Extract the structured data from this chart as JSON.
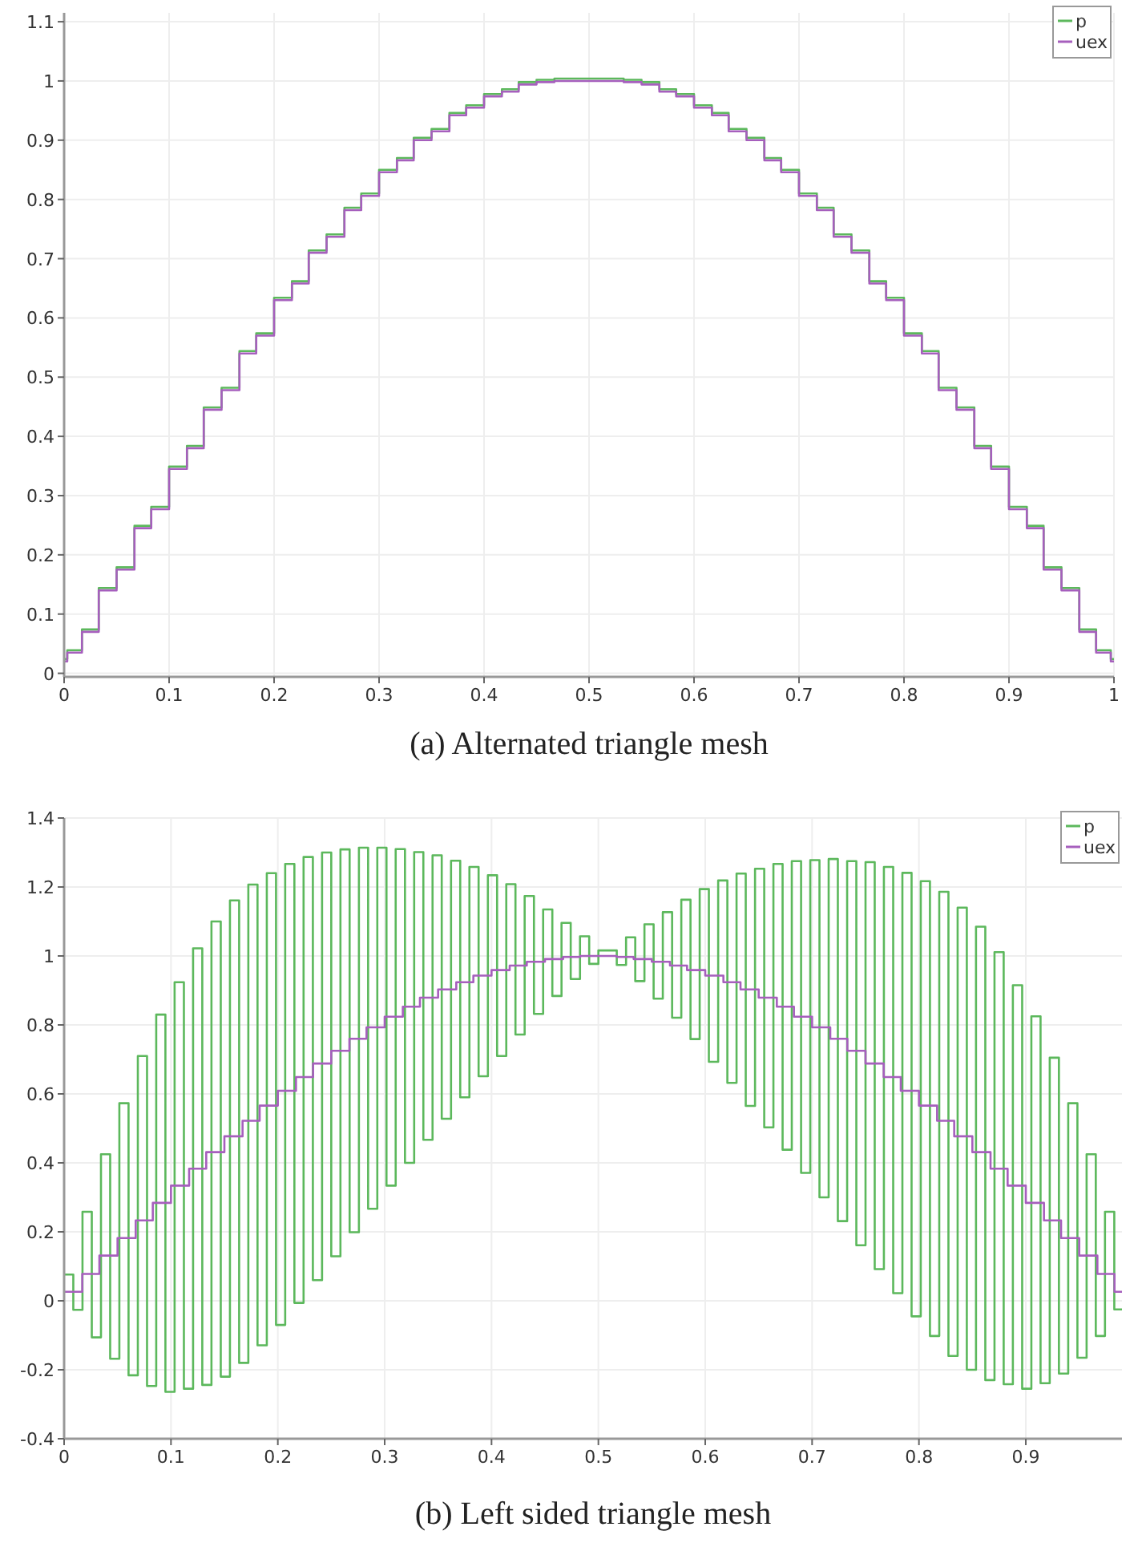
{
  "chart_data": [
    {
      "type": "step",
      "title": "(a) Alternated triangle mesh",
      "xlim": [
        0,
        1
      ],
      "ylim": [
        -0.006,
        1.115
      ],
      "xticks": [
        0,
        0.1,
        0.2,
        0.3,
        0.4,
        0.5,
        0.6,
        0.7,
        0.8,
        0.9,
        1
      ],
      "yticks": [
        0,
        0.1,
        0.2,
        0.3,
        0.4,
        0.5,
        0.6,
        0.7,
        0.8,
        0.9,
        1,
        1.1
      ],
      "grid": true,
      "legend": "top right",
      "x": [
        0,
        0.003,
        0.017,
        0.033,
        0.05,
        0.067,
        0.083,
        0.1,
        0.117,
        0.133,
        0.15,
        0.167,
        0.183,
        0.2,
        0.217,
        0.233,
        0.25,
        0.267,
        0.283,
        0.3,
        0.317,
        0.333,
        0.35,
        0.367,
        0.383,
        0.4,
        0.417,
        0.433,
        0.45,
        0.467,
        0.483,
        0.5,
        0.517,
        0.533,
        0.55,
        0.567,
        0.583,
        0.6,
        0.617,
        0.633,
        0.65,
        0.667,
        0.683,
        0.7,
        0.717,
        0.733,
        0.75,
        0.767,
        0.783,
        0.8,
        0.817,
        0.833,
        0.85,
        0.867,
        0.883,
        0.9,
        0.917,
        0.933,
        0.95,
        0.967,
        0.983,
        0.997,
        1
      ],
      "series": [
        {
          "name": "p",
          "color": "#5cb85c",
          "values": [
            0.024,
            0.039,
            0.074,
            0.144,
            0.179,
            0.249,
            0.281,
            0.349,
            0.384,
            0.449,
            0.482,
            0.544,
            0.574,
            0.634,
            0.662,
            0.714,
            0.741,
            0.786,
            0.81,
            0.85,
            0.87,
            0.904,
            0.919,
            0.946,
            0.959,
            0.978,
            0.986,
            0.998,
            1.002,
            1.004,
            1.004,
            1.004,
            1.004,
            1.002,
            0.998,
            0.986,
            0.978,
            0.959,
            0.946,
            0.919,
            0.904,
            0.87,
            0.85,
            0.81,
            0.786,
            0.741,
            0.714,
            0.662,
            0.634,
            0.574,
            0.544,
            0.482,
            0.449,
            0.384,
            0.349,
            0.281,
            0.249,
            0.179,
            0.144,
            0.074,
            0.039,
            0.024,
            0.024
          ]
        },
        {
          "name": "uex",
          "color": "#a65fbd",
          "values": [
            0.02,
            0.035,
            0.07,
            0.14,
            0.175,
            0.245,
            0.277,
            0.345,
            0.38,
            0.445,
            0.478,
            0.54,
            0.57,
            0.63,
            0.658,
            0.71,
            0.737,
            0.782,
            0.806,
            0.846,
            0.866,
            0.9,
            0.915,
            0.942,
            0.955,
            0.974,
            0.982,
            0.994,
            0.998,
            1.0,
            1.0,
            1.0,
            1.0,
            0.998,
            0.994,
            0.982,
            0.974,
            0.955,
            0.942,
            0.915,
            0.9,
            0.866,
            0.846,
            0.806,
            0.782,
            0.737,
            0.71,
            0.658,
            0.63,
            0.57,
            0.54,
            0.478,
            0.445,
            0.38,
            0.345,
            0.277,
            0.245,
            0.175,
            0.14,
            0.07,
            0.035,
            0.02,
            0.02
          ]
        }
      ]
    },
    {
      "type": "step",
      "title": "(b) Left sided triangle mesh",
      "xlim": [
        0,
        0.99
      ],
      "ylim": [
        -0.4,
        1.4
      ],
      "xticks": [
        0,
        0.1,
        0.2,
        0.3,
        0.4,
        0.5,
        0.6,
        0.7,
        0.8,
        0.9
      ],
      "yticks": [
        -0.4,
        -0.2,
        0,
        0.2,
        0.4,
        0.6,
        0.8,
        1,
        1.2,
        1.4
      ],
      "grid": true,
      "legend": "top right",
      "series": [
        {
          "name": "p",
          "color": "#5cb85c",
          "x": [
            0,
            0.0086,
            0.0172,
            0.0259,
            0.0345,
            0.0431,
            0.0517,
            0.0603,
            0.069,
            0.0776,
            0.0862,
            0.0948,
            0.1034,
            0.1121,
            0.1207,
            0.1293,
            0.1379,
            0.1466,
            0.1552,
            0.1638,
            0.1724,
            0.181,
            0.1897,
            0.1983,
            0.2069,
            0.2155,
            0.2241,
            0.2328,
            0.2414,
            0.25,
            0.2586,
            0.2672,
            0.2759,
            0.2845,
            0.2931,
            0.3017,
            0.3103,
            0.319,
            0.3276,
            0.3362,
            0.3448,
            0.3534,
            0.3621,
            0.3707,
            0.3793,
            0.3879,
            0.3966,
            0.4052,
            0.4138,
            0.4224,
            0.431,
            0.4397,
            0.4483,
            0.4569,
            0.4655,
            0.4741,
            0.4828,
            0.4914,
            0.5,
            0.5172,
            0.5259,
            0.5345,
            0.5431,
            0.5517,
            0.5603,
            0.569,
            0.5776,
            0.5862,
            0.5948,
            0.6034,
            0.6121,
            0.6207,
            0.6293,
            0.6379,
            0.6466,
            0.6552,
            0.6638,
            0.6724,
            0.681,
            0.6897,
            0.6983,
            0.7069,
            0.7155,
            0.7241,
            0.7328,
            0.7414,
            0.75,
            0.7586,
            0.7672,
            0.7759,
            0.7845,
            0.7931,
            0.8017,
            0.8103,
            0.819,
            0.8276,
            0.8362,
            0.8448,
            0.8534,
            0.8621,
            0.8707,
            0.8793,
            0.8879,
            0.8966,
            0.9052,
            0.9138,
            0.9224,
            0.931,
            0.9397,
            0.9483,
            0.9569,
            0.9655,
            0.9741,
            0.9828,
            0.99
          ],
          "values": [
            0.076,
            -0.026,
            0.258,
            -0.106,
            0.425,
            -0.168,
            0.573,
            -0.216,
            0.71,
            -0.247,
            0.83,
            -0.264,
            0.924,
            -0.255,
            1.022,
            -0.244,
            1.1,
            -0.22,
            1.161,
            -0.18,
            1.207,
            -0.129,
            1.24,
            -0.07,
            1.267,
            -0.006,
            1.287,
            0.06,
            1.3,
            0.129,
            1.309,
            0.199,
            1.314,
            0.267,
            1.314,
            0.334,
            1.31,
            0.4,
            1.301,
            0.467,
            1.292,
            0.528,
            1.276,
            0.59,
            1.258,
            0.651,
            1.234,
            0.71,
            1.208,
            0.772,
            1.174,
            0.832,
            1.135,
            0.884,
            1.096,
            0.933,
            1.057,
            0.977,
            1.016,
            0.974,
            1.054,
            0.927,
            1.092,
            0.876,
            1.127,
            0.821,
            1.163,
            0.759,
            1.194,
            0.693,
            1.219,
            0.632,
            1.239,
            0.565,
            1.253,
            0.503,
            1.267,
            0.438,
            1.275,
            0.371,
            1.278,
            0.3,
            1.281,
            0.231,
            1.275,
            0.161,
            1.272,
            0.092,
            1.258,
            0.022,
            1.241,
            -0.045,
            1.217,
            -0.102,
            1.186,
            -0.16,
            1.14,
            -0.2,
            1.085,
            -0.23,
            1.011,
            -0.242,
            0.915,
            -0.255,
            0.825,
            -0.239,
            0.705,
            -0.211,
            0.573,
            -0.165,
            0.425,
            -0.102,
            0.258,
            -0.025,
            -0.025
          ]
        },
        {
          "name": "uex",
          "color": "#a65fbd",
          "x": [
            0,
            0.017,
            0.033,
            0.05,
            0.067,
            0.083,
            0.1,
            0.117,
            0.133,
            0.15,
            0.167,
            0.183,
            0.2,
            0.217,
            0.233,
            0.25,
            0.267,
            0.283,
            0.3,
            0.317,
            0.333,
            0.35,
            0.367,
            0.383,
            0.4,
            0.417,
            0.433,
            0.45,
            0.467,
            0.483,
            0.5,
            0.517,
            0.533,
            0.55,
            0.567,
            0.583,
            0.6,
            0.617,
            0.633,
            0.65,
            0.667,
            0.683,
            0.7,
            0.717,
            0.733,
            0.75,
            0.767,
            0.783,
            0.8,
            0.817,
            0.833,
            0.85,
            0.867,
            0.883,
            0.9,
            0.917,
            0.933,
            0.95,
            0.967,
            0.983,
            0.99
          ],
          "values": [
            0.026,
            0.078,
            0.131,
            0.182,
            0.233,
            0.284,
            0.334,
            0.383,
            0.431,
            0.477,
            0.522,
            0.566,
            0.609,
            0.649,
            0.688,
            0.725,
            0.76,
            0.793,
            0.824,
            0.853,
            0.879,
            0.903,
            0.924,
            0.943,
            0.959,
            0.972,
            0.983,
            0.991,
            0.997,
            1.0,
            1.0,
            0.997,
            0.991,
            0.983,
            0.972,
            0.959,
            0.943,
            0.924,
            0.903,
            0.879,
            0.853,
            0.824,
            0.793,
            0.76,
            0.725,
            0.688,
            0.649,
            0.609,
            0.566,
            0.522,
            0.477,
            0.431,
            0.383,
            0.334,
            0.284,
            0.233,
            0.182,
            0.131,
            0.078,
            0.026,
            0.026
          ]
        }
      ]
    }
  ]
}
